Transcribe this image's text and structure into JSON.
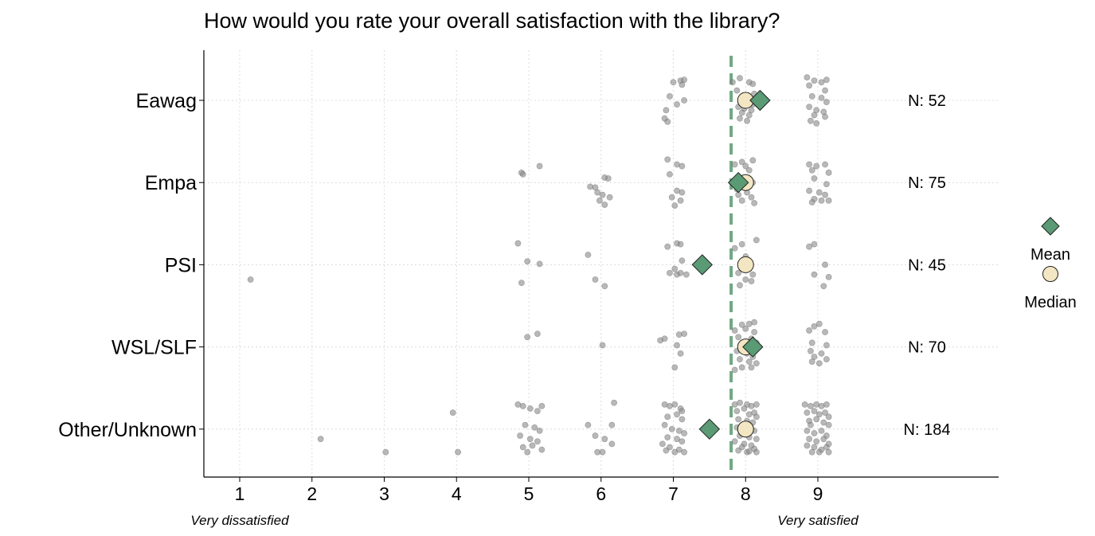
{
  "chart_data": {
    "type": "scatter",
    "title": "How would you rate your overall satisfaction with the library?",
    "xlabel": "",
    "ylabel": "",
    "xlim": [
      0.5,
      11.5
    ],
    "x_ticks": [
      1,
      2,
      3,
      4,
      5,
      6,
      7,
      8,
      9
    ],
    "x_anchor_labels": [
      {
        "x": 1,
        "label": "Very dissatisfied"
      },
      {
        "x": 9,
        "label": "Very satisfied"
      }
    ],
    "reference_line": {
      "x": 7.8,
      "style": "dashed",
      "color": "#6fa882"
    },
    "categories": [
      "Eawag",
      "Empa",
      "PSI",
      "WSL/SLF",
      "Other/Unknown"
    ],
    "groups": [
      {
        "name": "Eawag",
        "n_label": "N: 52",
        "mean": 8.2,
        "median": 8,
        "points": [
          [
            7.0,
            -0.22
          ],
          [
            7.1,
            -0.24
          ],
          [
            7.15,
            -0.25
          ],
          [
            7.12,
            -0.19
          ],
          [
            6.95,
            -0.05
          ],
          [
            7.15,
            0.0
          ],
          [
            7.05,
            0.05
          ],
          [
            6.9,
            0.12
          ],
          [
            6.88,
            0.22
          ],
          [
            6.92,
            0.26
          ],
          [
            7.82,
            -0.22
          ],
          [
            7.92,
            -0.27
          ],
          [
            8.05,
            -0.22
          ],
          [
            8.1,
            -0.2
          ],
          [
            7.88,
            -0.12
          ],
          [
            8.0,
            -0.05
          ],
          [
            8.05,
            0.02
          ],
          [
            8.1,
            0.05
          ],
          [
            7.9,
            0.08
          ],
          [
            8.08,
            0.12
          ],
          [
            7.95,
            0.15
          ],
          [
            8.05,
            0.18
          ],
          [
            7.92,
            0.22
          ],
          [
            8.02,
            0.25
          ],
          [
            8.12,
            -0.08
          ],
          [
            7.98,
            0.1
          ],
          [
            8.85,
            -0.28
          ],
          [
            8.95,
            -0.24
          ],
          [
            9.05,
            -0.22
          ],
          [
            8.88,
            -0.18
          ],
          [
            9.1,
            -0.12
          ],
          [
            8.92,
            -0.05
          ],
          [
            9.05,
            -0.03
          ],
          [
            9.12,
            0.02
          ],
          [
            8.88,
            0.08
          ],
          [
            8.98,
            0.12
          ],
          [
            9.08,
            0.14
          ],
          [
            8.95,
            0.18
          ],
          [
            9.1,
            0.2
          ],
          [
            8.9,
            0.25
          ],
          [
            8.98,
            0.28
          ],
          [
            9.12,
            -0.25
          ]
        ]
      },
      {
        "name": "Empa",
        "n_label": "N: 75",
        "mean": 7.9,
        "median": 8,
        "points": [
          [
            4.9,
            -0.12
          ],
          [
            4.92,
            -0.1
          ],
          [
            5.15,
            -0.2
          ],
          [
            5.85,
            0.05
          ],
          [
            5.92,
            0.06
          ],
          [
            6.05,
            -0.06
          ],
          [
            6.1,
            -0.05
          ],
          [
            5.95,
            0.12
          ],
          [
            6.02,
            0.15
          ],
          [
            6.12,
            0.18
          ],
          [
            5.98,
            0.22
          ],
          [
            6.05,
            0.27
          ],
          [
            6.92,
            -0.28
          ],
          [
            7.05,
            -0.22
          ],
          [
            7.12,
            -0.2
          ],
          [
            6.95,
            -0.1
          ],
          [
            7.05,
            0.1
          ],
          [
            7.12,
            0.12
          ],
          [
            6.98,
            0.18
          ],
          [
            7.1,
            0.22
          ],
          [
            7.02,
            0.28
          ],
          [
            7.85,
            -0.22
          ],
          [
            7.95,
            -0.25
          ],
          [
            8.1,
            -0.27
          ],
          [
            8.0,
            -0.2
          ],
          [
            8.05,
            -0.15
          ],
          [
            7.92,
            -0.05
          ],
          [
            8.1,
            0.0
          ],
          [
            7.88,
            0.08
          ],
          [
            8.02,
            0.12
          ],
          [
            8.08,
            0.18
          ],
          [
            7.95,
            0.22
          ],
          [
            8.12,
            0.25
          ],
          [
            8.0,
            0.05
          ],
          [
            7.9,
            0.15
          ],
          [
            8.88,
            -0.22
          ],
          [
            8.98,
            -0.2
          ],
          [
            9.1,
            -0.22
          ],
          [
            8.92,
            -0.15
          ],
          [
            9.15,
            -0.12
          ],
          [
            8.95,
            -0.05
          ],
          [
            9.12,
            0.02
          ],
          [
            8.88,
            0.1
          ],
          [
            9.02,
            0.12
          ],
          [
            9.1,
            0.15
          ],
          [
            8.95,
            0.2
          ],
          [
            9.05,
            0.22
          ],
          [
            8.92,
            0.24
          ],
          [
            9.15,
            0.22
          ]
        ]
      },
      {
        "name": "PSI",
        "n_label": "N: 45",
        "mean": 7.4,
        "median": 8,
        "points": [
          [
            1.15,
            0.18
          ],
          [
            4.85,
            -0.26
          ],
          [
            4.98,
            -0.04
          ],
          [
            5.15,
            -0.01
          ],
          [
            4.9,
            0.22
          ],
          [
            5.82,
            -0.12
          ],
          [
            5.92,
            0.18
          ],
          [
            6.05,
            0.26
          ],
          [
            6.92,
            -0.22
          ],
          [
            7.05,
            -0.26
          ],
          [
            7.1,
            -0.25
          ],
          [
            7.12,
            -0.05
          ],
          [
            6.95,
            0.1
          ],
          [
            7.05,
            0.12
          ],
          [
            7.1,
            0.1
          ],
          [
            7.18,
            0.12
          ],
          [
            7.02,
            0.05
          ],
          [
            7.85,
            -0.2
          ],
          [
            7.95,
            -0.25
          ],
          [
            8.15,
            -0.3
          ],
          [
            8.0,
            -0.1
          ],
          [
            8.05,
            0.02
          ],
          [
            7.9,
            0.1
          ],
          [
            8.1,
            0.12
          ],
          [
            8.0,
            0.18
          ],
          [
            7.92,
            0.25
          ],
          [
            8.08,
            0.2
          ],
          [
            8.88,
            -0.22
          ],
          [
            8.95,
            -0.25
          ],
          [
            9.1,
            0.0
          ],
          [
            8.95,
            0.12
          ],
          [
            9.15,
            0.15
          ],
          [
            9.08,
            0.26
          ]
        ]
      },
      {
        "name": "WSL/SLF",
        "n_label": "N: 70",
        "mean": 8.1,
        "median": 8,
        "points": [
          [
            4.98,
            -0.12
          ],
          [
            5.12,
            -0.16
          ],
          [
            6.02,
            -0.02
          ],
          [
            6.82,
            -0.08
          ],
          [
            6.88,
            -0.1
          ],
          [
            7.08,
            -0.15
          ],
          [
            7.15,
            -0.16
          ],
          [
            7.05,
            -0.02
          ],
          [
            7.1,
            0.08
          ],
          [
            7.02,
            0.25
          ],
          [
            7.85,
            -0.2
          ],
          [
            7.95,
            -0.27
          ],
          [
            8.05,
            -0.28
          ],
          [
            8.12,
            -0.3
          ],
          [
            8.0,
            -0.22
          ],
          [
            7.9,
            -0.12
          ],
          [
            8.08,
            -0.1
          ],
          [
            8.15,
            -0.05
          ],
          [
            7.88,
            0.05
          ],
          [
            8.02,
            0.08
          ],
          [
            8.1,
            0.12
          ],
          [
            7.92,
            0.15
          ],
          [
            8.05,
            0.18
          ],
          [
            8.15,
            0.2
          ],
          [
            7.95,
            0.25
          ],
          [
            8.08,
            0.25
          ],
          [
            7.85,
            0.28
          ],
          [
            8.12,
            -0.18
          ],
          [
            7.98,
            0.05
          ],
          [
            8.88,
            -0.2
          ],
          [
            8.95,
            -0.25
          ],
          [
            9.02,
            -0.28
          ],
          [
            9.1,
            -0.18
          ],
          [
            8.92,
            -0.05
          ],
          [
            9.12,
            -0.02
          ],
          [
            8.9,
            0.05
          ],
          [
            9.05,
            0.08
          ],
          [
            8.95,
            0.12
          ],
          [
            9.12,
            0.15
          ],
          [
            8.92,
            0.18
          ],
          [
            9.02,
            0.2
          ]
        ]
      },
      {
        "name": "Other/Unknown",
        "n_label": "N: 184",
        "mean": 7.5,
        "median": 8,
        "points": [
          [
            2.12,
            0.12
          ],
          [
            3.02,
            0.28
          ],
          [
            3.95,
            -0.2
          ],
          [
            4.02,
            0.28
          ],
          [
            4.85,
            -0.3
          ],
          [
            4.92,
            -0.28
          ],
          [
            5.02,
            -0.25
          ],
          [
            5.12,
            -0.22
          ],
          [
            5.18,
            -0.28
          ],
          [
            4.95,
            -0.05
          ],
          [
            5.08,
            -0.02
          ],
          [
            5.15,
            0.02
          ],
          [
            4.88,
            0.08
          ],
          [
            5.02,
            0.12
          ],
          [
            5.12,
            0.15
          ],
          [
            4.92,
            0.22
          ],
          [
            5.05,
            0.2
          ],
          [
            5.18,
            0.25
          ],
          [
            4.98,
            0.28
          ],
          [
            5.82,
            -0.05
          ],
          [
            5.92,
            0.08
          ],
          [
            6.05,
            0.12
          ],
          [
            6.15,
            0.18
          ],
          [
            5.95,
            0.28
          ],
          [
            6.02,
            0.28
          ],
          [
            6.18,
            -0.32
          ],
          [
            6.15,
            -0.05
          ],
          [
            6.88,
            -0.3
          ],
          [
            6.95,
            -0.28
          ],
          [
            7.02,
            -0.3
          ],
          [
            7.1,
            -0.25
          ],
          [
            6.92,
            -0.15
          ],
          [
            7.05,
            -0.18
          ],
          [
            7.12,
            -0.12
          ],
          [
            6.88,
            -0.05
          ],
          [
            6.98,
            0.0
          ],
          [
            7.08,
            0.02
          ],
          [
            7.15,
            0.05
          ],
          [
            6.92,
            0.1
          ],
          [
            7.05,
            0.12
          ],
          [
            7.12,
            0.15
          ],
          [
            6.85,
            0.18
          ],
          [
            6.95,
            0.22
          ],
          [
            7.08,
            0.25
          ],
          [
            7.02,
            0.28
          ],
          [
            7.15,
            0.28
          ],
          [
            6.9,
            0.26
          ],
          [
            7.12,
            -0.22
          ],
          [
            7.85,
            -0.3
          ],
          [
            7.92,
            -0.32
          ],
          [
            8.02,
            -0.3
          ],
          [
            8.08,
            -0.28
          ],
          [
            8.15,
            -0.3
          ],
          [
            7.88,
            -0.22
          ],
          [
            7.98,
            -0.25
          ],
          [
            8.05,
            -0.18
          ],
          [
            8.12,
            -0.2
          ],
          [
            7.9,
            -0.12
          ],
          [
            8.02,
            -0.1
          ],
          [
            8.1,
            -0.08
          ],
          [
            8.15,
            -0.15
          ],
          [
            7.88,
            -0.02
          ],
          [
            8.12,
            0.02
          ],
          [
            7.92,
            0.08
          ],
          [
            8.05,
            0.1
          ],
          [
            8.15,
            0.12
          ],
          [
            7.85,
            0.15
          ],
          [
            7.98,
            0.18
          ],
          [
            8.08,
            0.2
          ],
          [
            8.12,
            0.24
          ],
          [
            7.9,
            0.26
          ],
          [
            8.02,
            0.28
          ],
          [
            8.15,
            0.28
          ],
          [
            7.95,
            0.22
          ],
          [
            8.05,
            0.27
          ],
          [
            8.82,
            -0.3
          ],
          [
            8.9,
            -0.28
          ],
          [
            8.98,
            -0.3
          ],
          [
            9.05,
            -0.28
          ],
          [
            9.12,
            -0.3
          ],
          [
            8.85,
            -0.2
          ],
          [
            8.95,
            -0.22
          ],
          [
            9.02,
            -0.18
          ],
          [
            9.1,
            -0.2
          ],
          [
            9.15,
            -0.15
          ],
          [
            8.88,
            -0.1
          ],
          [
            8.98,
            -0.12
          ],
          [
            9.08,
            -0.08
          ],
          [
            9.15,
            -0.05
          ],
          [
            8.85,
            0.02
          ],
          [
            8.95,
            0.05
          ],
          [
            9.05,
            0.02
          ],
          [
            9.12,
            0.08
          ],
          [
            8.88,
            0.12
          ],
          [
            8.98,
            0.15
          ],
          [
            9.08,
            0.12
          ],
          [
            9.15,
            0.18
          ],
          [
            8.85,
            0.2
          ],
          [
            8.95,
            0.22
          ],
          [
            9.05,
            0.25
          ],
          [
            9.12,
            0.22
          ],
          [
            8.92,
            0.28
          ],
          [
            9.02,
            0.28
          ],
          [
            9.15,
            0.28
          ],
          [
            8.9,
            -0.05
          ]
        ]
      }
    ],
    "legend": {
      "position": "right",
      "items": [
        {
          "label": "Mean",
          "shape": "diamond",
          "color": "#5a9a74"
        },
        {
          "label": "Median",
          "shape": "circle",
          "color": "#f3e6c2"
        }
      ]
    },
    "colors": {
      "points": "#888888",
      "mean_fill": "#5a9a74",
      "median_fill": "#f3e6c2",
      "reference_line": "#6fa882",
      "grid": "#dcdcdc"
    }
  }
}
